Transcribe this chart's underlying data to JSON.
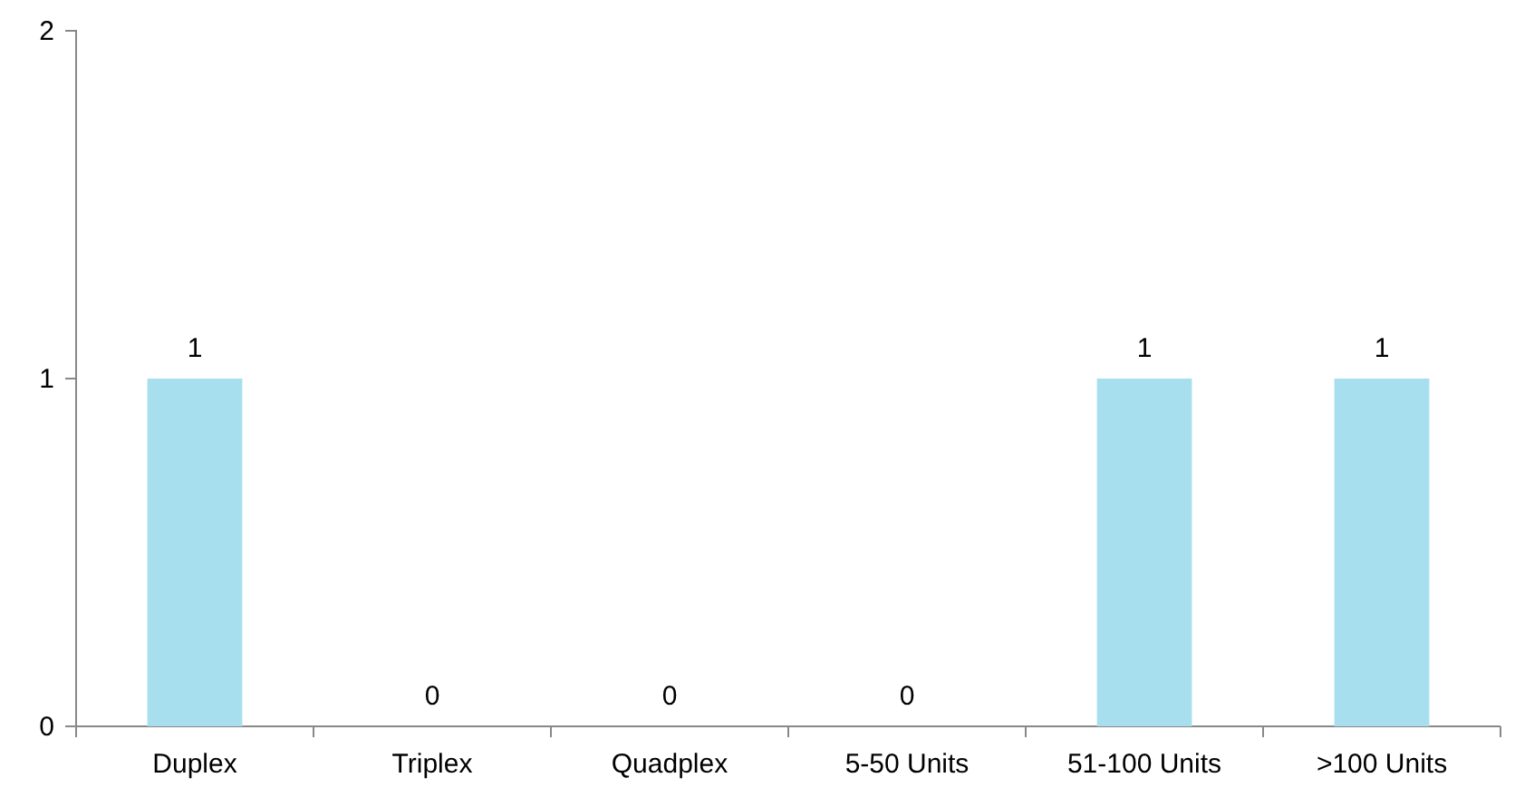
{
  "chart_data": {
    "type": "bar",
    "categories": [
      "Duplex",
      "Triplex",
      "Quadplex",
      "5-50 Units",
      "51-100 Units",
      ">100 Units"
    ],
    "values": [
      1,
      0,
      0,
      0,
      1,
      1
    ],
    "color": "#a7dfef",
    "ylim": [
      0,
      2
    ],
    "yticks": [
      0,
      1,
      2
    ],
    "data_labels": true
  }
}
